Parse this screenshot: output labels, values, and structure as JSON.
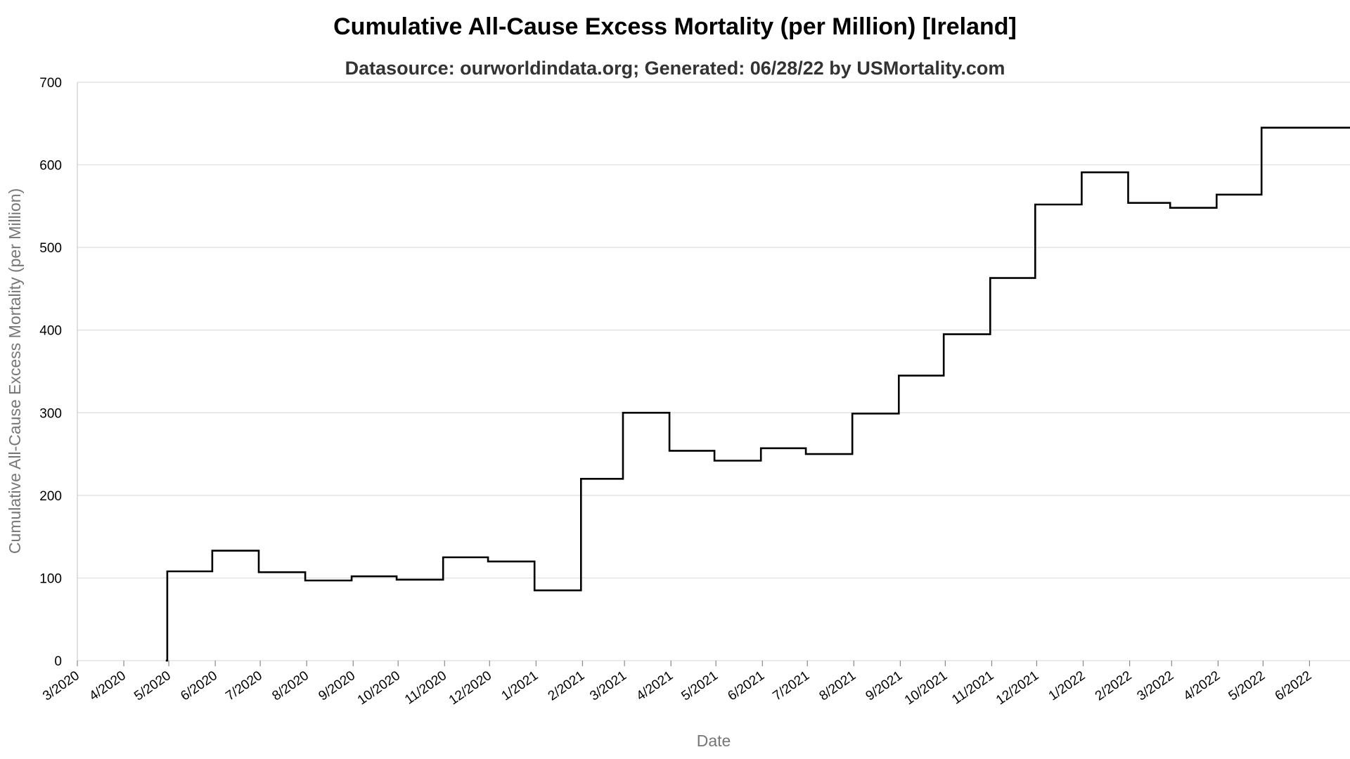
{
  "chart_data": {
    "type": "line",
    "title": "Cumulative All-Cause Excess Mortality (per Million) [Ireland]",
    "subtitle": "Datasource: ourworldindata.org; Generated: 06/28/22 by USMortality.com",
    "xlabel": "Date",
    "ylabel": "Cumulative All-Cause Excess Mortality (per Million)",
    "ylim": [
      0,
      700
    ],
    "yticks": [
      0,
      100,
      200,
      300,
      400,
      500,
      600,
      700
    ],
    "xlim": [
      "2020-03-01",
      "2022-06-28"
    ],
    "xticks": [
      {
        "date": "2020-03-01",
        "label": "3/2020"
      },
      {
        "date": "2020-04-01",
        "label": "4/2020"
      },
      {
        "date": "2020-05-01",
        "label": "5/2020"
      },
      {
        "date": "2020-06-01",
        "label": "6/2020"
      },
      {
        "date": "2020-07-01",
        "label": "7/2020"
      },
      {
        "date": "2020-08-01",
        "label": "8/2020"
      },
      {
        "date": "2020-09-01",
        "label": "9/2020"
      },
      {
        "date": "2020-10-01",
        "label": "10/2020"
      },
      {
        "date": "2020-11-01",
        "label": "11/2020"
      },
      {
        "date": "2020-12-01",
        "label": "12/2020"
      },
      {
        "date": "2021-01-01",
        "label": "1/2021"
      },
      {
        "date": "2021-02-01",
        "label": "2/2021"
      },
      {
        "date": "2021-03-01",
        "label": "3/2021"
      },
      {
        "date": "2021-04-01",
        "label": "4/2021"
      },
      {
        "date": "2021-05-01",
        "label": "5/2021"
      },
      {
        "date": "2021-06-01",
        "label": "6/2021"
      },
      {
        "date": "2021-07-01",
        "label": "7/2021"
      },
      {
        "date": "2021-08-01",
        "label": "8/2021"
      },
      {
        "date": "2021-09-01",
        "label": "9/2021"
      },
      {
        "date": "2021-10-01",
        "label": "10/2021"
      },
      {
        "date": "2021-11-01",
        "label": "11/2021"
      },
      {
        "date": "2021-12-01",
        "label": "12/2021"
      },
      {
        "date": "2022-01-01",
        "label": "1/2022"
      },
      {
        "date": "2022-02-01",
        "label": "2/2022"
      },
      {
        "date": "2022-03-01",
        "label": "3/2022"
      },
      {
        "date": "2022-04-01",
        "label": "4/2022"
      },
      {
        "date": "2022-05-01",
        "label": "5/2022"
      },
      {
        "date": "2022-06-01",
        "label": "6/2022"
      }
    ],
    "grid": true,
    "series": [
      {
        "color": "#000000",
        "step": true,
        "points": [
          {
            "x": "2020-04-29",
            "y": 0
          },
          {
            "x": "2020-04-30",
            "y": 108
          },
          {
            "x": "2020-05-30",
            "y": 133
          },
          {
            "x": "2020-06-30",
            "y": 107
          },
          {
            "x": "2020-07-31",
            "y": 97
          },
          {
            "x": "2020-08-31",
            "y": 102
          },
          {
            "x": "2020-09-30",
            "y": 98
          },
          {
            "x": "2020-10-31",
            "y": 125
          },
          {
            "x": "2020-11-30",
            "y": 120
          },
          {
            "x": "2020-12-31",
            "y": 85
          },
          {
            "x": "2021-01-31",
            "y": 220
          },
          {
            "x": "2021-02-28",
            "y": 300
          },
          {
            "x": "2021-03-31",
            "y": 254
          },
          {
            "x": "2021-04-30",
            "y": 242
          },
          {
            "x": "2021-05-31",
            "y": 257
          },
          {
            "x": "2021-06-30",
            "y": 250
          },
          {
            "x": "2021-07-31",
            "y": 299
          },
          {
            "x": "2021-08-31",
            "y": 345
          },
          {
            "x": "2021-09-30",
            "y": 395
          },
          {
            "x": "2021-10-31",
            "y": 463
          },
          {
            "x": "2021-11-30",
            "y": 552
          },
          {
            "x": "2021-12-31",
            "y": 591
          },
          {
            "x": "2022-01-31",
            "y": 554
          },
          {
            "x": "2022-02-28",
            "y": 548
          },
          {
            "x": "2022-03-31",
            "y": 564
          },
          {
            "x": "2022-04-30",
            "y": 645
          },
          {
            "x": "2022-06-28",
            "y": 645
          }
        ]
      }
    ]
  }
}
